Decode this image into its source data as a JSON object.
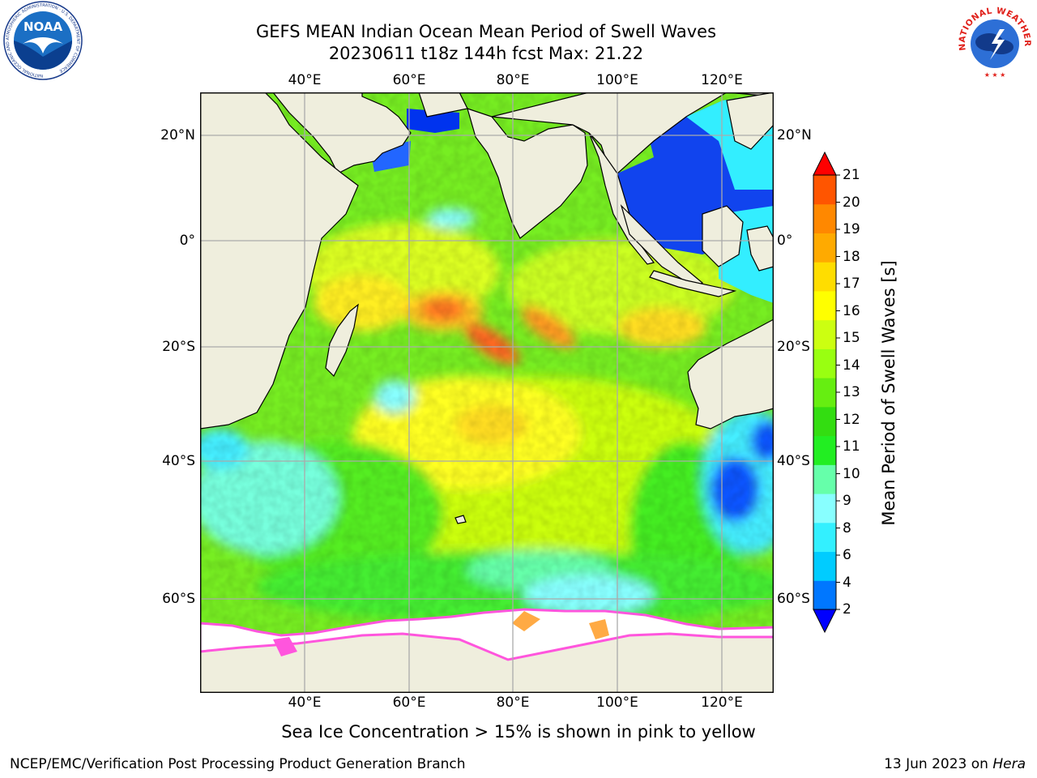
{
  "title": {
    "line1": "GEFS MEAN Indian Ocean Mean Period of Swell Waves",
    "line2": "20230611 t18z 144h fcst   Max: 21.22"
  },
  "map": {
    "lon_ticks": [
      "40°E",
      "60°E",
      "80°E",
      "100°E",
      "120°E"
    ],
    "lat_ticks": [
      "20°N",
      "0°",
      "20°S",
      "40°S",
      "60°S"
    ],
    "colors": {
      "land": "#efeedd",
      "ice": "#ffffff",
      "ice_edge_pink": "#ff55dd",
      "ice_edge_orange": "#ffaa44",
      "grid": "#aaaaaa"
    }
  },
  "colorbar": {
    "label": "Mean Period of Swell Waves [s]",
    "ticks": [
      "2",
      "4",
      "6",
      "8",
      "9",
      "10",
      "11",
      "12",
      "13",
      "14",
      "15",
      "16",
      "17",
      "18",
      "19",
      "20",
      "21"
    ],
    "colors": [
      "#0000ee",
      "#0077ff",
      "#00ccff",
      "#33f0ff",
      "#88ffff",
      "#66ffaa",
      "#22ee22",
      "#33dd11",
      "#66ee11",
      "#99ff11",
      "#ccff11",
      "#ffff00",
      "#ffdd00",
      "#ffaa00",
      "#ff8800",
      "#ff5500",
      "#ff2200"
    ],
    "min_color": "#0000ff",
    "max_color": "#ff0000"
  },
  "ice_note": "Sea Ice Concentration > 15% is shown in pink to yellow",
  "footer": {
    "left": "NCEP/EMC/Verification Post Processing Product Generation Branch",
    "right_date": "13 Jun 2023 on",
    "right_machine": "Hera"
  },
  "logos": {
    "noaa": "NOAA",
    "noaa_ring": "NATIONAL OCEANIC AND ATMOSPHERIC ADMINISTRATION · U.S. DEPARTMENT OF COMMERCE",
    "nws_ring": "NATIONAL WEATHER SERVICE"
  }
}
